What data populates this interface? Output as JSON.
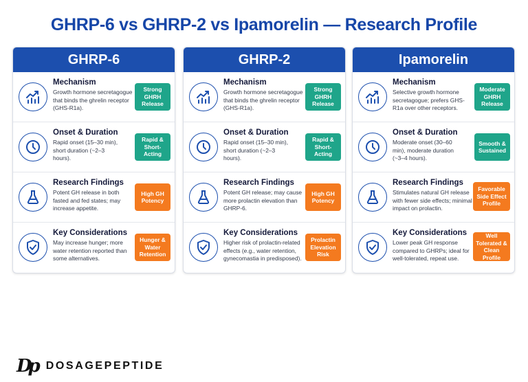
{
  "title": "GHRP-6 vs GHRP-2 vs Ipamorelin — Research Profile",
  "columns": [
    {
      "name": "GHRP-6",
      "rows": [
        {
          "title": "Mechanism",
          "desc": "Growth hormone secretagogue that binds the ghrelin receptor (GHS-R1a).",
          "badge": "Strong GHRH Release",
          "badge_color": "teal",
          "icon": "chart-growth-icon"
        },
        {
          "title": "Onset & Duration",
          "desc": "Rapid onset (15–30 min), short duration (~2–3 hours).",
          "badge": "Rapid & Short-Acting",
          "badge_color": "teal",
          "icon": "clock-icon"
        },
        {
          "title": "Research Findings",
          "desc": "Potent GH release in both fasted and fed states; may increase appetite.",
          "badge": "High GH Potency",
          "badge_color": "orange",
          "icon": "flask-icon"
        },
        {
          "title": "Key Considerations",
          "desc": "May increase hunger; more water retention reported than some alternatives.",
          "badge": "Hunger & Water Retention",
          "badge_color": "orange",
          "icon": "shield-check-icon"
        }
      ]
    },
    {
      "name": "GHRP-2",
      "rows": [
        {
          "title": "Mechanism",
          "desc": "Growth hormone secretagogue that binds the ghrelin receptor (GHS-R1a).",
          "badge": "Strong GHRH Release",
          "badge_color": "teal",
          "icon": "chart-growth-icon"
        },
        {
          "title": "Onset & Duration",
          "desc": "Rapid onset (15–30 min), short duration (~2–3 hours).",
          "badge": "Rapid & Short-Acting",
          "badge_color": "teal",
          "icon": "clock-icon"
        },
        {
          "title": "Research Findings",
          "desc": "Potent GH release; may cause more prolactin elevation than GHRP-6.",
          "badge": "High GH Potency",
          "badge_color": "orange",
          "icon": "flask-icon"
        },
        {
          "title": "Key Considerations",
          "desc": "Higher risk of prolactin-related effects (e.g., water retention, gynecomastia in predisposed).",
          "badge": "Prolactin Elevation Risk",
          "badge_color": "orange",
          "icon": "shield-check-icon"
        }
      ]
    },
    {
      "name": "Ipamorelin",
      "rows": [
        {
          "title": "Mechanism",
          "desc": "Selective growth hormone secretagogue; prefers GHS-R1a over other receptors.",
          "badge": "Moderate GHRH Release",
          "badge_color": "teal",
          "icon": "chart-growth-icon"
        },
        {
          "title": "Onset & Duration",
          "desc": "Moderate onset (30–60 min), moderate duration (~3–4 hours).",
          "badge": "Smooth & Sustained",
          "badge_color": "teal",
          "icon": "clock-icon"
        },
        {
          "title": "Research Findings",
          "desc": "Stimulates natural GH release with fewer side effects; minimal impact on prolactin.",
          "badge": "Favorable Side Effect Profile",
          "badge_color": "orange",
          "icon": "flask-icon"
        },
        {
          "title": "Key Considerations",
          "desc": "Lower peak GH response compared to GHRPs; ideal for well-tolerated, repeat use.",
          "badge": "Well Tolerated & Clean Profile",
          "badge_color": "orange",
          "icon": "shield-check-icon"
        }
      ]
    }
  ],
  "logo": {
    "mark": "Dp",
    "text": "DOSAGEPEPTIDE"
  },
  "colors": {
    "primary": "#1c4fae",
    "teal": "#1fa58a",
    "orange": "#f47a1f",
    "title": "#1646a8"
  }
}
